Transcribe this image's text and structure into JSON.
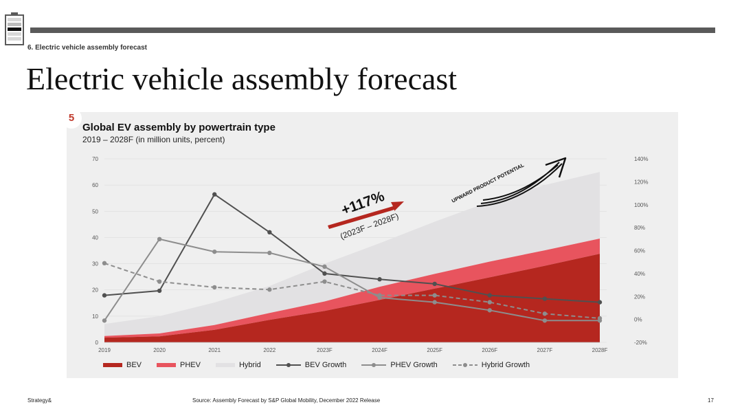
{
  "header": {
    "section_label": "6. Electric vehicle assembly forecast",
    "title": "Electric vehicle assembly forecast"
  },
  "panel": {
    "badge": "5"
  },
  "callouts": {
    "growth_value": "+117%",
    "growth_period": "(2023F – 2028F)",
    "upward_label": "UPWARD PRODUCT POTENTIAL"
  },
  "colors": {
    "bev": "#b5271f",
    "phev": "#e8545e",
    "hybrid": "#e2e1e3",
    "bev_growth": "#505050",
    "phev_growth": "#8d8d8d",
    "hybrid_growth": "#8d8d8d"
  },
  "chart_data": {
    "type": "area",
    "title": "Global EV assembly by powertrain type",
    "subtitle": "2019 – 2028F (in million units, percent)",
    "categories": [
      "2019",
      "2020",
      "2021",
      "2022",
      "2023F",
      "2024F",
      "2025F",
      "2026F",
      "2027F",
      "2028F"
    ],
    "stacked": true,
    "ylim": [
      0,
      70
    ],
    "yticks": [
      "0",
      "10",
      "20",
      "30",
      "40",
      "50",
      "60",
      "70"
    ],
    "y2lim": [
      -20,
      140
    ],
    "y2ticks": [
      "-20%",
      "0%",
      "20%",
      "40%",
      "60%",
      "80%",
      "100%",
      "120%",
      "140%"
    ],
    "series": [
      {
        "name": "BEV",
        "kind": "area",
        "values": [
          1.8,
          2.3,
          4.8,
          8.6,
          12.0,
          16.2,
          20.5,
          24.8,
          29.2,
          33.8
        ]
      },
      {
        "name": "PHEV",
        "kind": "area",
        "values": [
          0.6,
          1.1,
          1.8,
          2.6,
          3.6,
          5.0,
          5.6,
          6.0,
          5.9,
          5.8
        ]
      },
      {
        "name": "Hybrid",
        "kind": "area",
        "values": [
          4.6,
          6.6,
          8.6,
          10.3,
          14.4,
          16.6,
          19.9,
          22.9,
          24.9,
          25.4
        ]
      },
      {
        "name": "BEV Growth",
        "kind": "line",
        "axis": "right",
        "values": [
          21,
          25,
          109,
          76,
          40,
          35,
          31,
          21,
          18,
          15
        ]
      },
      {
        "name": "PHEV Growth",
        "kind": "line",
        "axis": "right",
        "values": [
          -1,
          70,
          59,
          58,
          46,
          19,
          15,
          8,
          -1,
          -1
        ]
      },
      {
        "name": "Hybrid Growth",
        "kind": "line",
        "axis": "right",
        "dashed": true,
        "values": [
          49,
          33,
          28,
          26,
          33,
          21,
          21,
          15,
          5,
          1
        ]
      }
    ],
    "legend": [
      "BEV",
      "PHEV",
      "Hybrid",
      "BEV Growth",
      "PHEV Growth",
      "Hybrid Growth"
    ],
    "legend_position": "bottom"
  },
  "footer": {
    "brand": "Strategy&",
    "source": "Source: Assembly Forecast by S&P Global Mobility, December 2022 Release",
    "page_number": "17"
  }
}
